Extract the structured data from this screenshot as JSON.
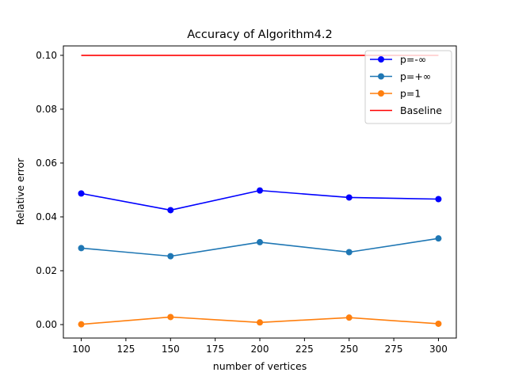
{
  "chart_data": {
    "type": "line",
    "title": "Accuracy of Algorithm4.2",
    "xlabel": "number of vertices",
    "ylabel": "Relative error",
    "xlim": [
      90,
      310
    ],
    "ylim": [
      -0.005,
      0.1035
    ],
    "xticks": [
      100,
      125,
      150,
      175,
      200,
      225,
      250,
      275,
      300
    ],
    "xtick_labels": [
      "100",
      "125",
      "150",
      "175",
      "200",
      "225",
      "250",
      "275",
      "300"
    ],
    "yticks": [
      0.0,
      0.02,
      0.04,
      0.06,
      0.08,
      0.1
    ],
    "ytick_labels": [
      "0.00",
      "0.02",
      "0.04",
      "0.06",
      "0.08",
      "0.10"
    ],
    "grid": false,
    "legend": "top-right",
    "x": [
      100,
      150,
      200,
      250,
      300
    ],
    "series": [
      {
        "name": "p=-∞",
        "color": "#0000ff",
        "marker": true,
        "values": [
          0.0487,
          0.0425,
          0.0498,
          0.0472,
          0.0466
        ]
      },
      {
        "name": "p=+∞",
        "color": "#1f77b4",
        "marker": true,
        "values": [
          0.0284,
          0.0254,
          0.0306,
          0.0269,
          0.032
        ]
      },
      {
        "name": "p=1",
        "color": "#ff7f0e",
        "marker": true,
        "values": [
          0.0001,
          0.0028,
          0.0008,
          0.0026,
          0.0003
        ]
      },
      {
        "name": "Baseline",
        "color": "#ff0000",
        "marker": false,
        "values": [
          0.1,
          0.1,
          0.1,
          0.1,
          0.1
        ]
      }
    ]
  }
}
